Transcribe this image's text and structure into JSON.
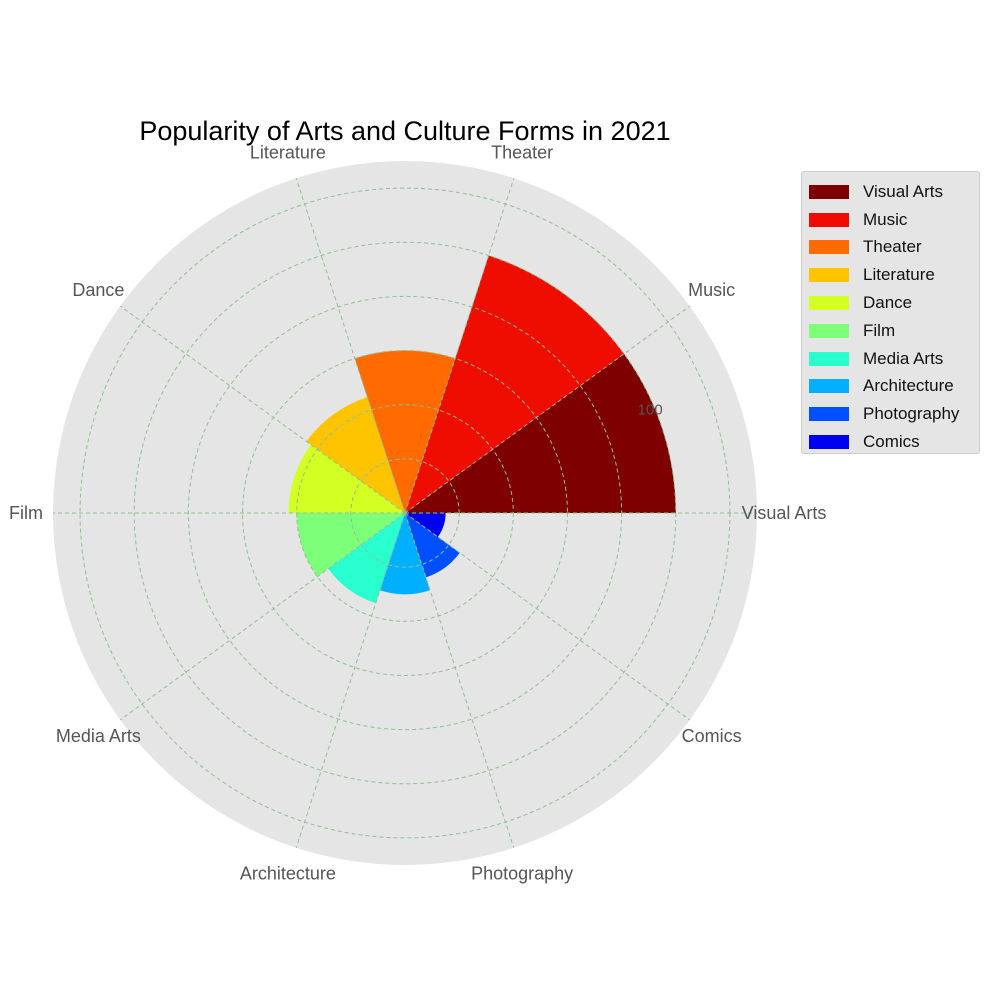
{
  "chart_data": {
    "type": "polar-bar",
    "title": "Popularity of Arts and Culture Forms in 2021",
    "categories": [
      "Visual Arts",
      "Music",
      "Theater",
      "Literature",
      "Dance",
      "Film",
      "Media Arts",
      "Architecture",
      "Photography",
      "Comics"
    ],
    "values": [
      100,
      100,
      60,
      45,
      43,
      40,
      35,
      30,
      25,
      15
    ],
    "colors": [
      "#7f0000",
      "#ee0d00",
      "#ff6b00",
      "#ffc400",
      "#d4ff22",
      "#7dff7a",
      "#29ffce",
      "#00b0ff",
      "#0050ff",
      "#0000f0"
    ],
    "radial_ticks": [
      100
    ],
    "rmax": 130,
    "grid": true,
    "legend": "upper right, outside"
  }
}
